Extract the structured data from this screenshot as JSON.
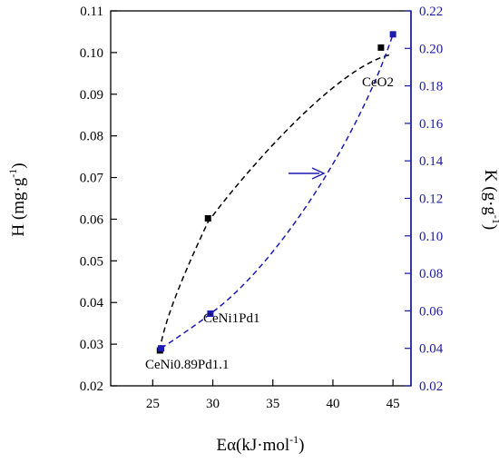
{
  "colors": {
    "left_axis": "#000000",
    "right_axis": "#1a1aa8",
    "h_series": "#000000",
    "k_series": "#1a1ab4"
  },
  "chart_data": {
    "type": "scatter",
    "title": "",
    "xlabel": "Eα(kJ·mol",
    "xlabel_sup": "-1",
    "xlabel_end": ")",
    "ylabel_left": "H (mg·g",
    "ylabel_left_sup": "-1",
    "ylabel_left_end": ")",
    "ylabel_right": "K (g·g",
    "ylabel_right_sup": "-1",
    "ylabel_right_end": ")",
    "xlim": [
      21.5,
      46.5
    ],
    "ylim_left": [
      0.02,
      0.11
    ],
    "ylim_right": [
      0.02,
      0.22
    ],
    "xticks": [
      25,
      30,
      35,
      40,
      45
    ],
    "yticks_left": [
      0.02,
      0.03,
      0.04,
      0.05,
      0.06,
      0.07,
      0.08,
      0.09,
      0.1,
      0.11
    ],
    "yticks_left_labels": [
      "0.02",
      "0.03",
      "0.04",
      "0.05",
      "0.06",
      "0.07",
      "0.08",
      "0.09",
      "0.10",
      "0.11"
    ],
    "yticks_right": [
      0.02,
      0.04,
      0.06,
      0.08,
      0.1,
      0.12,
      0.14,
      0.16,
      0.18,
      0.2,
      0.22
    ],
    "yticks_right_labels": [
      "0.02",
      "0.04",
      "0.06",
      "0.08",
      "0.10",
      "0.12",
      "0.14",
      "0.16",
      "0.18",
      "0.20",
      "0.22"
    ],
    "grid": false,
    "series": [
      {
        "axis": "left",
        "marker": "square",
        "line": "dashed",
        "points": [
          {
            "x": 25.6,
            "y": 0.0285
          },
          {
            "x": 29.6,
            "y": 0.0602
          },
          {
            "x": 44.0,
            "y": 0.1012
          }
        ]
      },
      {
        "axis": "right",
        "marker": "square",
        "line": "dashed",
        "points": [
          {
            "x": 25.7,
            "y": 0.04
          },
          {
            "x": 29.8,
            "y": 0.0585
          },
          {
            "x": 45.0,
            "y": 0.2075
          }
        ]
      }
    ],
    "annotations": [
      {
        "text": "CeO2",
        "x": 44.0,
        "y": 0.1012
      },
      {
        "text": "CeNi1Pd1",
        "x": 29.8,
        "y": 0.0585
      },
      {
        "text": "CeNi0.89Pd1.1",
        "x": 25.6,
        "y": 0.0285
      }
    ],
    "arrow_note": "arrow points to right axis"
  }
}
